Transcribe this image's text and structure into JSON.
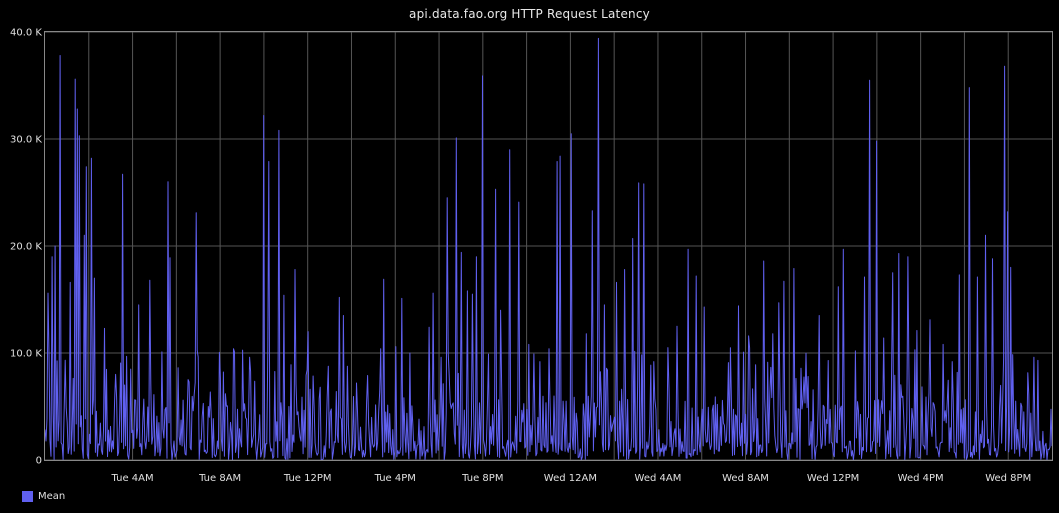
{
  "chart_data": {
    "type": "line",
    "title": "api.data.fao.org HTTP Request Latency",
    "yticks": [
      "0",
      "10.0 K",
      "20.0 K",
      "30.0 K",
      "40.0 K"
    ],
    "ylim": [
      0,
      40000
    ],
    "xticks": [
      "Tue  4AM",
      "Tue  8AM",
      "Tue 12PM",
      "Tue  4PM",
      "Tue  8PM",
      "Wed 12AM",
      "Wed  4AM",
      "Wed  8AM",
      "Wed 12PM",
      "Wed  4PM",
      "Wed  8PM"
    ],
    "x_range_hours": [
      0,
      46
    ],
    "grid": true,
    "legend_position": "bottom-left",
    "series": [
      {
        "name": "Mean",
        "color": "#6060f0",
        "peaks": [
          {
            "h": 0.1,
            "v": 15600
          },
          {
            "h": 0.3,
            "v": 19000
          },
          {
            "h": 0.45,
            "v": 20000
          },
          {
            "h": 0.65,
            "v": 37800
          },
          {
            "h": 1.0,
            "v": 3500
          },
          {
            "h": 1.15,
            "v": 16600
          },
          {
            "h": 1.35,
            "v": 35600
          },
          {
            "h": 1.45,
            "v": 32800
          },
          {
            "h": 1.55,
            "v": 30300
          },
          {
            "h": 1.75,
            "v": 21000
          },
          {
            "h": 1.85,
            "v": 27400
          },
          {
            "h": 2.1,
            "v": 28200
          },
          {
            "h": 2.25,
            "v": 17000
          },
          {
            "h": 2.7,
            "v": 12300
          },
          {
            "h": 3.2,
            "v": 8000
          },
          {
            "h": 3.5,
            "v": 26700
          },
          {
            "h": 3.9,
            "v": 8500
          },
          {
            "h": 4.25,
            "v": 14500
          },
          {
            "h": 4.75,
            "v": 16800
          },
          {
            "h": 5.3,
            "v": 10100
          },
          {
            "h": 5.6,
            "v": 26000
          },
          {
            "h": 5.7,
            "v": 18900
          },
          {
            "h": 6.3,
            "v": 5600
          },
          {
            "h": 6.9,
            "v": 23100
          },
          {
            "h": 7.5,
            "v": 4000
          },
          {
            "h": 8.2,
            "v": 6200
          },
          {
            "h": 8.6,
            "v": 10400
          },
          {
            "h": 9.3,
            "v": 4200
          },
          {
            "h": 9.95,
            "v": 32200
          },
          {
            "h": 10.2,
            "v": 27900
          },
          {
            "h": 10.65,
            "v": 30800
          },
          {
            "h": 10.9,
            "v": 15400
          },
          {
            "h": 11.4,
            "v": 17800
          },
          {
            "h": 12.0,
            "v": 12000
          },
          {
            "h": 12.55,
            "v": 6800
          },
          {
            "h": 13.4,
            "v": 15200
          },
          {
            "h": 13.6,
            "v": 13500
          },
          {
            "h": 14.2,
            "v": 7200
          },
          {
            "h": 14.7,
            "v": 7900
          },
          {
            "h": 15.3,
            "v": 10400
          },
          {
            "h": 15.45,
            "v": 16900
          },
          {
            "h": 16.0,
            "v": 10600
          },
          {
            "h": 16.3,
            "v": 15100
          },
          {
            "h": 16.65,
            "v": 10000
          },
          {
            "h": 17.5,
            "v": 12400
          },
          {
            "h": 17.7,
            "v": 15600
          },
          {
            "h": 18.35,
            "v": 24500
          },
          {
            "h": 18.75,
            "v": 30100
          },
          {
            "h": 19.0,
            "v": 19400
          },
          {
            "h": 19.25,
            "v": 15800
          },
          {
            "h": 19.5,
            "v": 15500
          },
          {
            "h": 19.7,
            "v": 19000
          },
          {
            "h": 19.95,
            "v": 35900
          },
          {
            "h": 20.55,
            "v": 25300
          },
          {
            "h": 20.8,
            "v": 14000
          },
          {
            "h": 21.2,
            "v": 29000
          },
          {
            "h": 21.6,
            "v": 24100
          },
          {
            "h": 22.1,
            "v": 10800
          },
          {
            "h": 22.6,
            "v": 9200
          },
          {
            "h": 23.0,
            "v": 10400
          },
          {
            "h": 23.35,
            "v": 27900
          },
          {
            "h": 23.5,
            "v": 28400
          },
          {
            "h": 24.0,
            "v": 30500
          },
          {
            "h": 24.7,
            "v": 11800
          },
          {
            "h": 25.0,
            "v": 23300
          },
          {
            "h": 25.25,
            "v": 39400
          },
          {
            "h": 25.55,
            "v": 14500
          },
          {
            "h": 26.1,
            "v": 16600
          },
          {
            "h": 26.45,
            "v": 17800
          },
          {
            "h": 26.8,
            "v": 20700
          },
          {
            "h": 27.1,
            "v": 25900
          },
          {
            "h": 27.35,
            "v": 25800
          },
          {
            "h": 27.8,
            "v": 9200
          },
          {
            "h": 28.45,
            "v": 10500
          },
          {
            "h": 28.85,
            "v": 12500
          },
          {
            "h": 29.35,
            "v": 19700
          },
          {
            "h": 29.7,
            "v": 17200
          },
          {
            "h": 30.1,
            "v": 14300
          },
          {
            "h": 30.6,
            "v": 5900
          },
          {
            "h": 31.2,
            "v": 9100
          },
          {
            "h": 31.65,
            "v": 14400
          },
          {
            "h": 32.1,
            "v": 11600
          },
          {
            "h": 32.45,
            "v": 8900
          },
          {
            "h": 32.8,
            "v": 18600
          },
          {
            "h": 33.2,
            "v": 11800
          },
          {
            "h": 33.5,
            "v": 14700
          },
          {
            "h": 33.75,
            "v": 16700
          },
          {
            "h": 34.2,
            "v": 17900
          },
          {
            "h": 34.85,
            "v": 7800
          },
          {
            "h": 35.35,
            "v": 13500
          },
          {
            "h": 35.75,
            "v": 9300
          },
          {
            "h": 36.2,
            "v": 16200
          },
          {
            "h": 36.45,
            "v": 19700
          },
          {
            "h": 37.0,
            "v": 10200
          },
          {
            "h": 37.4,
            "v": 17100
          },
          {
            "h": 37.65,
            "v": 35500
          },
          {
            "h": 37.95,
            "v": 29800
          },
          {
            "h": 38.3,
            "v": 11400
          },
          {
            "h": 38.7,
            "v": 17500
          },
          {
            "h": 39.0,
            "v": 19300
          },
          {
            "h": 39.4,
            "v": 19000
          },
          {
            "h": 39.8,
            "v": 12100
          },
          {
            "h": 40.4,
            "v": 13100
          },
          {
            "h": 41.0,
            "v": 10800
          },
          {
            "h": 41.4,
            "v": 9200
          },
          {
            "h": 41.75,
            "v": 17300
          },
          {
            "h": 42.2,
            "v": 34800
          },
          {
            "h": 42.55,
            "v": 17100
          },
          {
            "h": 42.95,
            "v": 21000
          },
          {
            "h": 43.25,
            "v": 18800
          },
          {
            "h": 43.6,
            "v": 5000
          },
          {
            "h": 43.8,
            "v": 36800
          },
          {
            "h": 43.95,
            "v": 23200
          },
          {
            "h": 44.1,
            "v": 18000
          },
          {
            "h": 44.3,
            "v": 5500
          }
        ]
      }
    ]
  }
}
